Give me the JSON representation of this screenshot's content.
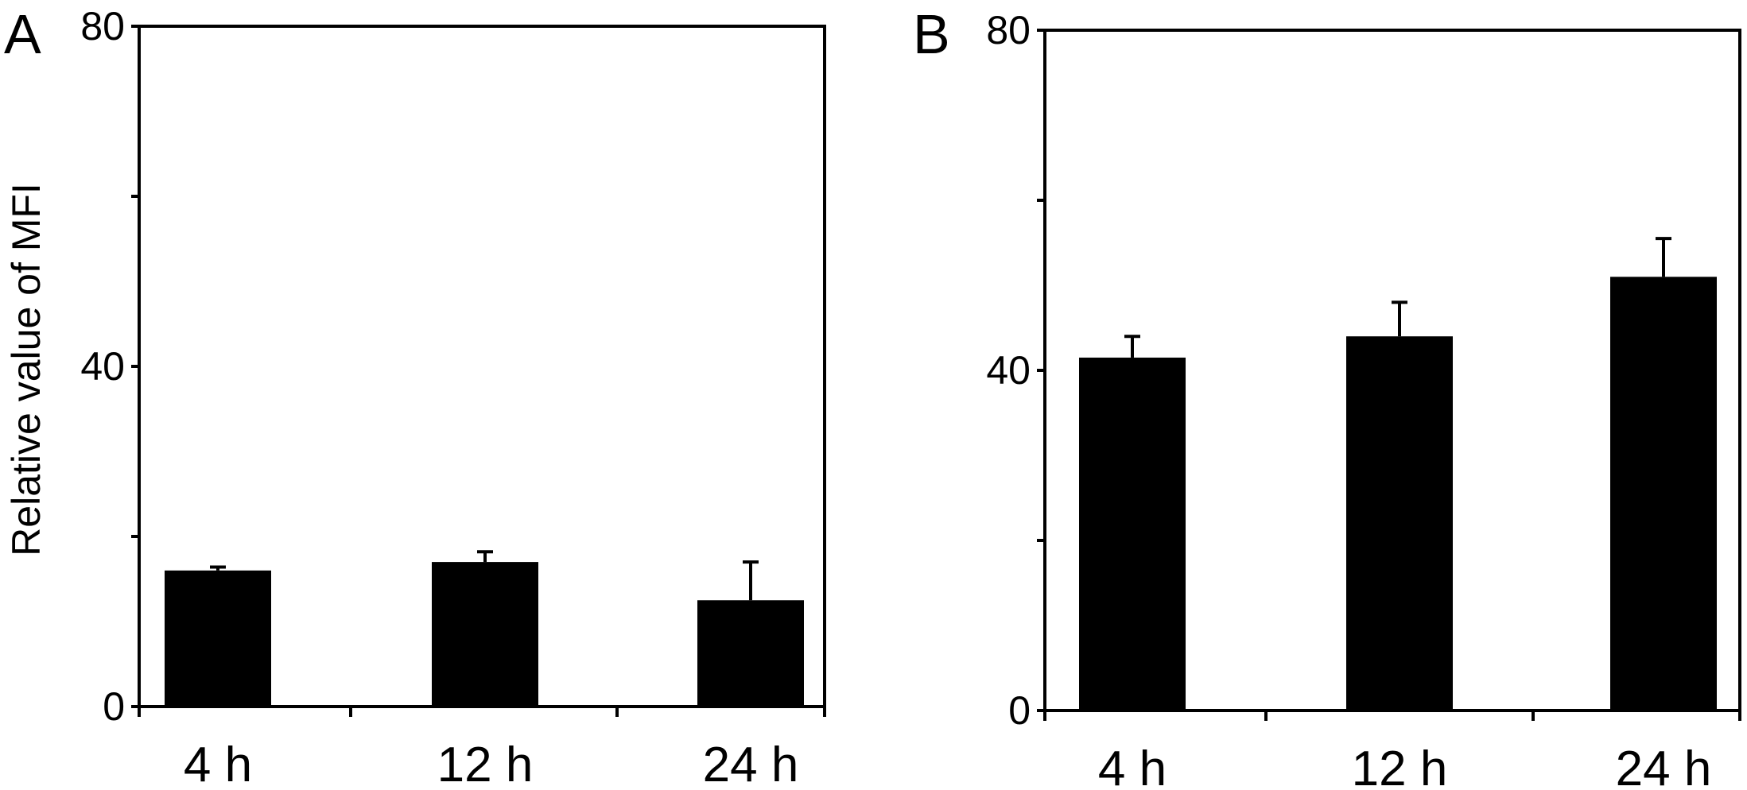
{
  "chart_data": [
    {
      "type": "bar",
      "panel_label": "A",
      "categories": [
        "4 h",
        "12 h",
        "24 h"
      ],
      "values": [
        16.0,
        17.0,
        12.5
      ],
      "error_bars": [
        0.4,
        1.2,
        4.5
      ],
      "ylabel": "Relative value of MFI",
      "xlabel": "",
      "ylim": [
        0,
        80
      ],
      "y_tick_labels": [
        "0",
        "40",
        "80"
      ],
      "y_ticks_unlabeled": [
        20,
        60
      ],
      "grid": false,
      "bar_color": "#000000"
    },
    {
      "type": "bar",
      "panel_label": "B",
      "categories": [
        "4 h",
        "12 h",
        "24 h"
      ],
      "values": [
        41.5,
        44.0,
        51.0
      ],
      "error_bars": [
        2.5,
        4.0,
        4.5
      ],
      "ylabel": "",
      "xlabel": "",
      "ylim": [
        0,
        80
      ],
      "y_tick_labels": [
        "0",
        "40",
        "80"
      ],
      "y_ticks_unlabeled": [
        20,
        60
      ],
      "grid": false,
      "bar_color": "#000000"
    }
  ]
}
